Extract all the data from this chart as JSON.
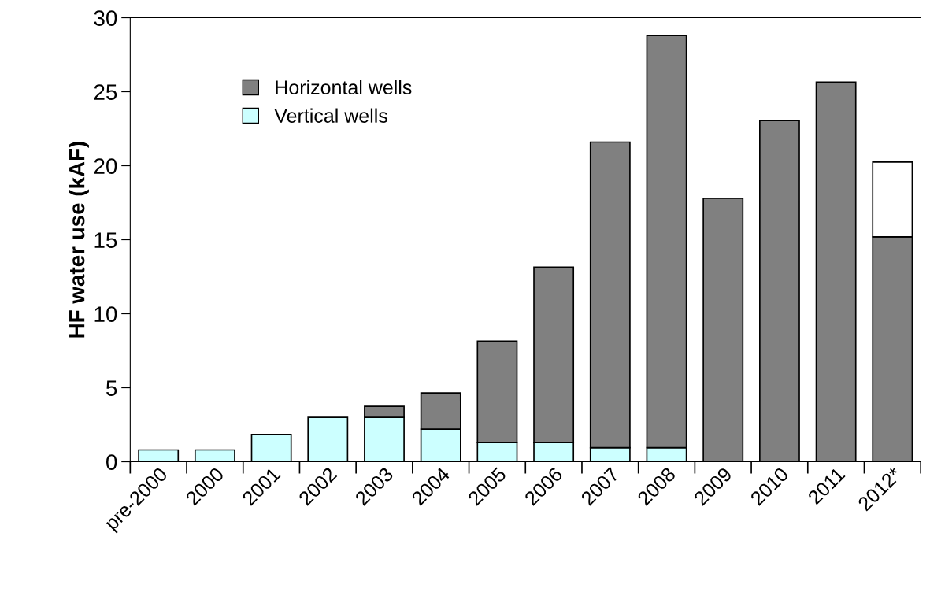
{
  "chart_data": {
    "type": "bar",
    "stacked": true,
    "ylabel": "HF water use (kAF)",
    "categories": [
      "pre-2000",
      "2000",
      "2001",
      "2002",
      "2003",
      "2004",
      "2005",
      "2006",
      "2007",
      "2008",
      "2009",
      "2010",
      "2011",
      "2012*"
    ],
    "series": [
      {
        "name": "Vertical wells",
        "color": "#ccffff",
        "values": [
          0.8,
          0.8,
          1.85,
          3.0,
          3.0,
          2.2,
          1.3,
          1.3,
          0.95,
          0.95,
          null,
          null,
          null,
          null
        ]
      },
      {
        "name": "Horizontal wells",
        "color": "#808080",
        "values": [
          null,
          null,
          null,
          null,
          0.75,
          2.45,
          6.85,
          11.85,
          20.65,
          27.85,
          17.8,
          23.05,
          25.65,
          15.2
        ]
      },
      {
        "color": "#ffffff",
        "values": [
          null,
          null,
          null,
          null,
          null,
          null,
          null,
          null,
          null,
          null,
          null,
          null,
          null,
          5.05
        ]
      }
    ],
    "ylim": [
      0,
      30
    ],
    "yticks": [
      0,
      5,
      10,
      15,
      20,
      25,
      30
    ],
    "grid": false,
    "legend": "top left"
  }
}
